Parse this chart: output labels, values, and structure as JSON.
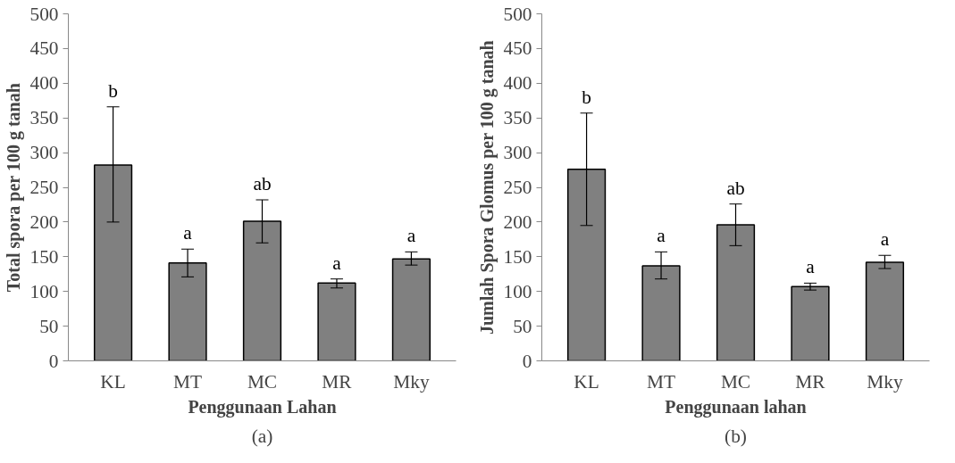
{
  "chart_data": [
    {
      "type": "bar",
      "xlabel": "Penggunaan Lahan",
      "ylabel": "Total spora per 100 g tanah",
      "categories": [
        "KL",
        "MT",
        "MC",
        "MR",
        "Mky"
      ],
      "series": [
        {
          "color": "#808080",
          "values": [
            282,
            141,
            201,
            112,
            147
          ],
          "errors": [
            [
              200,
              366
            ],
            [
              121,
              161
            ],
            [
              170,
              232
            ],
            [
              105,
              118
            ],
            [
              138,
              157
            ]
          ]
        }
      ],
      "ylim": [
        0,
        500
      ],
      "yticks": [
        0,
        50,
        100,
        150,
        200,
        250,
        300,
        350,
        400,
        450,
        500
      ],
      "grid": false,
      "annotations": [
        "b",
        "a",
        "ab",
        "a",
        "a",
        "(a)"
      ]
    },
    {
      "type": "bar",
      "xlabel": "Penggunaan lahan",
      "ylabel": "Jumlah Spora Glomus per 100 g tanah",
      "categories": [
        "KL",
        "MT",
        "MC",
        "MR",
        "Mky"
      ],
      "series": [
        {
          "color": "#808080",
          "values": [
            276,
            137,
            196,
            107,
            142
          ],
          "errors": [
            [
              195,
              357
            ],
            [
              118,
              157
            ],
            [
              166,
              226
            ],
            [
              102,
              112
            ],
            [
              133,
              152
            ]
          ]
        }
      ],
      "ylim": [
        0,
        500
      ],
      "yticks": [
        0,
        50,
        100,
        150,
        200,
        250,
        300,
        350,
        400,
        450,
        500
      ],
      "grid": false,
      "annotations": [
        "b",
        "a",
        "ab",
        "a",
        "a",
        "(b)"
      ]
    }
  ]
}
